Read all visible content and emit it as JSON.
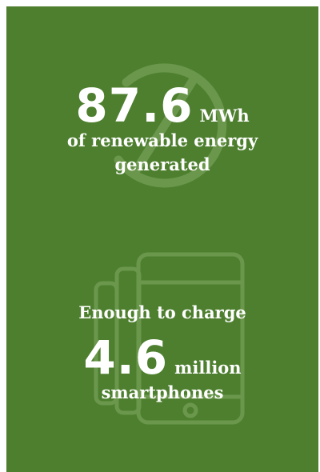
{
  "stat_energy": {
    "value": "87.6",
    "unit": "MWh",
    "line1": "of renewable energy",
    "line2": "generated",
    "background_icon": "recycle-leaf-icon"
  },
  "stat_phones": {
    "intro": "Enough to charge",
    "value": "4.6",
    "unit": "million",
    "line1": "smartphones",
    "background_icon": "smartphones-icon"
  },
  "colors": {
    "background": "#4d7f2f",
    "text": "#ffffff",
    "watermark": "#7ea360"
  }
}
